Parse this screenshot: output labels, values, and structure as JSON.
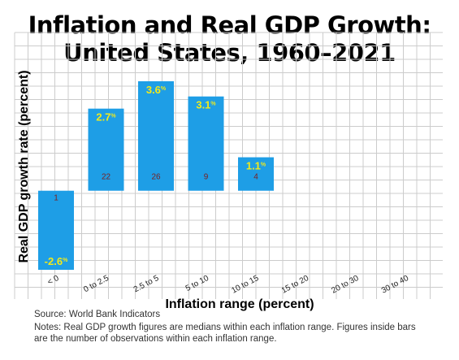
{
  "title_line1": "Inflation and Real GDP Growth:",
  "title_line2": "United States, 1960–2021",
  "colors": {
    "bar": "#1e9ee6",
    "value_label": "#f2ea1a",
    "count_label": "#7a1f1f",
    "grid": "#cccccc"
  },
  "source": "Source: World Bank Indicators",
  "notes": "Notes: Real GDP growth figures are medians within each inflation range. Figures inside bars are the number of observations within each inflation range.",
  "chart_data": {
    "type": "bar",
    "title": "Inflation and Real GDP Growth: United States, 1960–2021",
    "xlabel": "Inflation range (percent)",
    "ylabel": "Real GDP growth rate (percent)",
    "categories": [
      "< 0",
      "0 to 2.5",
      "2.5 to 5",
      "5 to 10",
      "10 to 15",
      "15 to 20",
      "20 to 30",
      "30 to 40"
    ],
    "values": [
      -2.6,
      2.7,
      3.6,
      3.1,
      1.1,
      null,
      null,
      null
    ],
    "value_labels": [
      "-2.6%",
      "2.7%",
      "3.6%",
      "3.1%",
      "1.1%",
      "",
      "",
      ""
    ],
    "counts": [
      "1",
      "22",
      "26",
      "9",
      "4",
      "",
      "",
      ""
    ],
    "ylim": [
      -2.6,
      3.6
    ],
    "grid": true
  }
}
